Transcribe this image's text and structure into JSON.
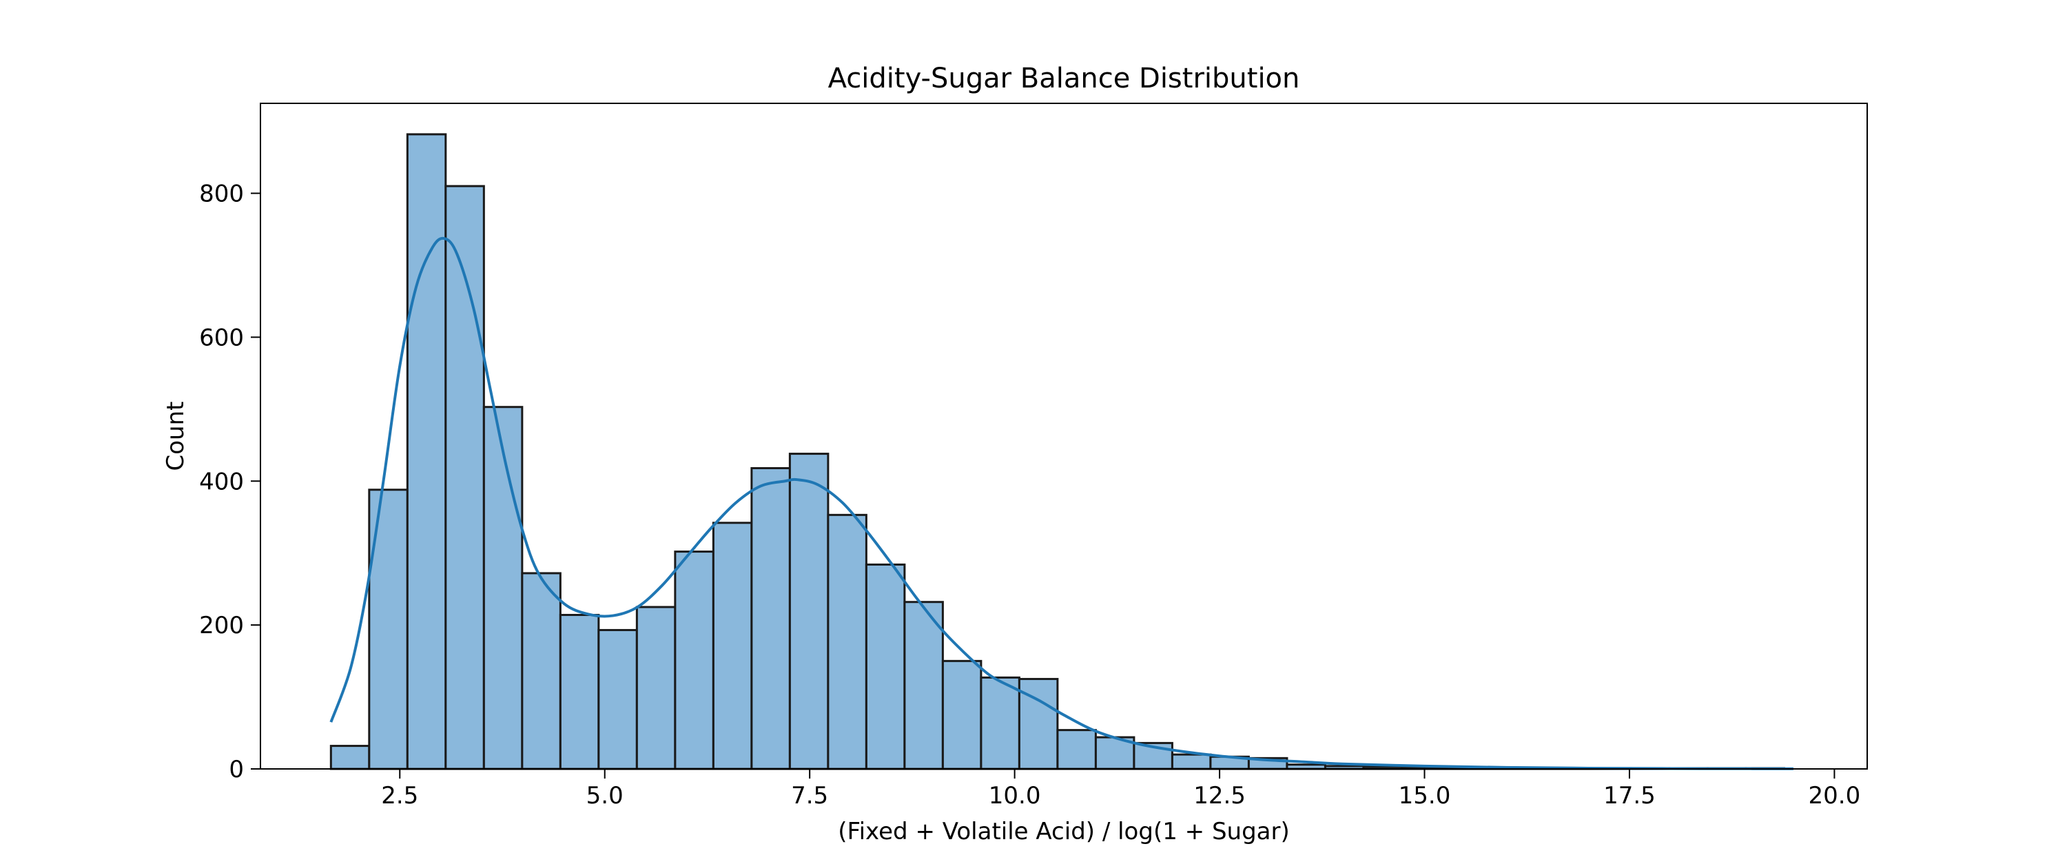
{
  "chart_data": {
    "type": "bar",
    "subtype": "histogram-with-kde",
    "title": "Acidity-Sugar Balance Distribution",
    "xlabel": "(Fixed + Volatile Acid) / log(1 + Sugar)",
    "ylabel": "Count",
    "xlim": [
      0.8,
      20.4
    ],
    "ylim": [
      0,
      925
    ],
    "xticks": [
      2.5,
      5.0,
      7.5,
      10.0,
      12.5,
      15.0,
      17.5,
      20.0
    ],
    "xtick_labels": [
      "2.5",
      "5.0",
      "7.5",
      "10.0",
      "12.5",
      "15.0",
      "17.5",
      "20.0"
    ],
    "yticks": [
      0,
      200,
      400,
      600,
      800
    ],
    "ytick_labels": [
      "0",
      "200",
      "400",
      "600",
      "800"
    ],
    "grid": false,
    "legend": "none",
    "colors": {
      "bar_fill": "#8ab8dc",
      "bar_edge": "#1a1a1a",
      "kde_line": "#1f77b4"
    },
    "bin_start": 1.66,
    "bin_width": 0.4665,
    "counts": [
      32,
      388,
      882,
      810,
      503,
      272,
      214,
      193,
      225,
      302,
      342,
      418,
      438,
      353,
      284,
      232,
      150,
      127,
      125,
      54,
      44,
      36,
      20,
      17,
      15,
      6,
      4,
      3,
      2,
      2,
      1,
      1,
      1,
      1,
      1,
      1,
      1,
      1
    ],
    "kde": {
      "x": [
        1.66,
        1.9,
        2.1,
        2.3,
        2.5,
        2.7,
        2.9,
        3.05,
        3.2,
        3.4,
        3.6,
        3.8,
        4.0,
        4.2,
        4.5,
        4.8,
        5.1,
        5.4,
        5.7,
        6.0,
        6.3,
        6.6,
        6.9,
        7.2,
        7.35,
        7.6,
        7.9,
        8.2,
        8.5,
        8.8,
        9.1,
        9.4,
        9.7,
        10.0,
        10.3,
        10.6,
        11.0,
        11.5,
        12.0,
        12.5,
        13.0,
        13.5,
        14.0,
        15.0,
        16.0,
        17.0,
        18.0,
        19.0,
        19.5
      ],
      "y": [
        65,
        140,
        250,
        400,
        560,
        670,
        725,
        737,
        715,
        640,
        530,
        420,
        330,
        270,
        230,
        215,
        213,
        225,
        255,
        295,
        335,
        370,
        393,
        400,
        402,
        395,
        370,
        330,
        285,
        238,
        195,
        160,
        130,
        112,
        95,
        75,
        52,
        35,
        25,
        18,
        13,
        10,
        7,
        4,
        2,
        1,
        0.5,
        0.3,
        0.2
      ]
    }
  }
}
